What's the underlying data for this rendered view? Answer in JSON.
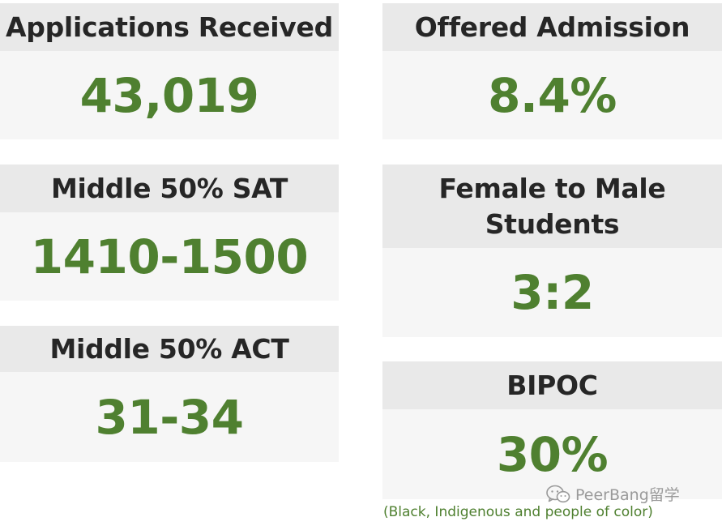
{
  "cards": [
    {
      "title": "Applications Received",
      "value": "43,019"
    },
    {
      "title": "Offered Admission",
      "value": "8.4%"
    },
    {
      "title": "Middle 50% SAT",
      "value": "1410-1500"
    },
    {
      "title_lines": [
        "Female to Male",
        "Students"
      ],
      "value": "3:2"
    },
    {
      "title": "Middle 50% ACT",
      "value": "31-34"
    },
    {
      "title": "BIPOC",
      "value": "30%"
    }
  ],
  "footnote": "(Black, Indigenous and people of color)",
  "watermark": {
    "icon": "wechat-icon",
    "text": "PeerBang留学"
  },
  "colors": {
    "value_green": "#4f8030",
    "header_bg": "#e9e9e9",
    "card_bg": "#f6f6f6",
    "header_text": "#262626"
  }
}
